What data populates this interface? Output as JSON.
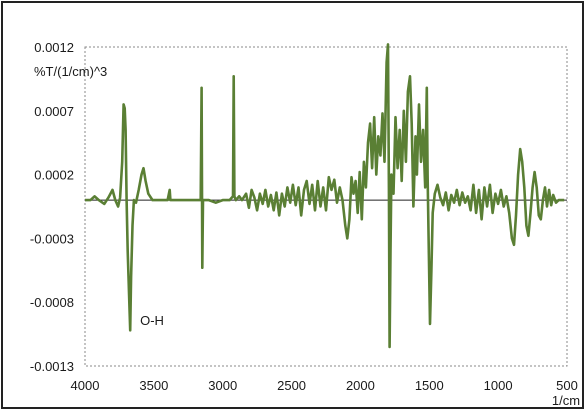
{
  "chart_data": {
    "type": "line",
    "title": "",
    "xlabel": "1/cm",
    "ylabel": "%T/(1/cm)^3",
    "x_reversed": true,
    "xlim": [
      4000,
      500
    ],
    "ylim": [
      -0.0013,
      0.0012
    ],
    "x_ticks": [
      "4000",
      "3500",
      "3000",
      "2500",
      "2000",
      "1500",
      "1000",
      "500"
    ],
    "y_ticks": [
      "0.0012",
      "0.0007",
      "0.0002",
      "-0.0003",
      "-0.0008",
      "-0.0013"
    ],
    "grid": false,
    "legend": "none",
    "colors": {
      "series": "#5a7f34",
      "baseline": "#222222",
      "border": "#222222",
      "plot_border": "#888888"
    },
    "annotations": [
      {
        "text": "O-H",
        "x": 3600,
        "y": -0.00098
      }
    ],
    "series": [
      {
        "points": [
          [
            4000,
            0.0
          ],
          [
            3960,
            0.0
          ],
          [
            3930,
            3e-05
          ],
          [
            3900,
            0.0
          ],
          [
            3860,
            -3e-05
          ],
          [
            3830,
            2e-05
          ],
          [
            3800,
            8e-05
          ],
          [
            3780,
            0.0
          ],
          [
            3760,
            -5e-05
          ],
          [
            3745,
            2e-05
          ],
          [
            3730,
            0.0003
          ],
          [
            3720,
            0.00075
          ],
          [
            3712,
            0.00072
          ],
          [
            3705,
            0.00055
          ],
          [
            3698,
            0.0
          ],
          [
            3690,
            -0.0004
          ],
          [
            3680,
            -0.00075
          ],
          [
            3672,
            -0.00102
          ],
          [
            3665,
            -0.0006
          ],
          [
            3655,
            -0.0002
          ],
          [
            3645,
            0.0
          ],
          [
            3630,
            -2e-05
          ],
          [
            3610,
            8e-05
          ],
          [
            3590,
            0.0002
          ],
          [
            3575,
            0.00025
          ],
          [
            3560,
            0.00015
          ],
          [
            3540,
            5e-05
          ],
          [
            3510,
            0.0
          ],
          [
            3450,
            0.0
          ],
          [
            3400,
            0.0
          ],
          [
            3385,
            8e-05
          ],
          [
            3380,
            0.0
          ],
          [
            3300,
            0.0
          ],
          [
            3250,
            0.0
          ],
          [
            3200,
            0.0
          ],
          [
            3160,
            0.0
          ],
          [
            3153,
            0.00088
          ],
          [
            3148,
            -0.00053
          ],
          [
            3143,
            0.0
          ],
          [
            3100,
            0.0
          ],
          [
            3050,
            -2e-05
          ],
          [
            3000,
            0.0
          ],
          [
            2950,
            0.0
          ],
          [
            2925,
            3e-05
          ],
          [
            2920,
            0.00097
          ],
          [
            2915,
            3e-05
          ],
          [
            2905,
            0.0
          ],
          [
            2880,
            3e-05
          ],
          [
            2860,
            0.0
          ],
          [
            2830,
            5e-05
          ],
          [
            2810,
            -6e-05
          ],
          [
            2790,
            8e-05
          ],
          [
            2770,
            2e-05
          ],
          [
            2750,
            -8e-05
          ],
          [
            2730,
            5e-05
          ],
          [
            2710,
            -3e-05
          ],
          [
            2690,
            8e-05
          ],
          [
            2670,
            -5e-05
          ],
          [
            2650,
            4e-05
          ],
          [
            2630,
            -8e-05
          ],
          [
            2610,
            6e-05
          ],
          [
            2590,
            -0.00012
          ],
          [
            2570,
            5e-05
          ],
          [
            2550,
            -5e-05
          ],
          [
            2530,
            0.0001
          ],
          [
            2510,
            -2e-05
          ],
          [
            2490,
            0.00012
          ],
          [
            2470,
            -4e-05
          ],
          [
            2450,
            0.0001
          ],
          [
            2430,
            -0.00012
          ],
          [
            2410,
            8e-05
          ],
          [
            2390,
            0.00015
          ],
          [
            2370,
            -3e-05
          ],
          [
            2350,
            0.00012
          ],
          [
            2330,
            -8e-05
          ],
          [
            2310,
            0.00015
          ],
          [
            2290,
            -5e-05
          ],
          [
            2270,
            0.0001
          ],
          [
            2250,
            -8e-05
          ],
          [
            2230,
            0.00018
          ],
          [
            2210,
            8e-05
          ],
          [
            2190,
            0.00016
          ],
          [
            2170,
            -2e-05
          ],
          [
            2150,
            0.0001
          ],
          [
            2130,
            0.0
          ],
          [
            2110,
            -0.0002
          ],
          [
            2095,
            -0.0003
          ],
          [
            2080,
            -0.00015
          ],
          [
            2065,
            0.00018
          ],
          [
            2050,
            5e-05
          ],
          [
            2035,
            0.00015
          ],
          [
            2020,
            -0.0001
          ],
          [
            2005,
            0.00022
          ],
          [
            1990,
            -0.00015
          ],
          [
            1975,
            0.0003
          ],
          [
            1960,
            0.0001
          ],
          [
            1945,
            0.00045
          ],
          [
            1930,
            0.0006
          ],
          [
            1915,
            0.00025
          ],
          [
            1900,
            0.00065
          ],
          [
            1885,
            0.0002
          ],
          [
            1870,
            0.0005
          ],
          [
            1855,
            0.00035
          ],
          [
            1840,
            0.00068
          ],
          [
            1825,
            0.0003
          ],
          [
            1810,
            0.00108
          ],
          [
            1800,
            0.00122
          ],
          [
            1793,
            0.0001
          ],
          [
            1788,
            -0.00115
          ],
          [
            1782,
            -0.0004
          ],
          [
            1775,
            0.0002
          ],
          [
            1760,
            5e-05
          ],
          [
            1745,
            0.00065
          ],
          [
            1730,
            0.00025
          ],
          [
            1715,
            0.00055
          ],
          [
            1700,
            0.00015
          ],
          [
            1685,
            0.0007
          ],
          [
            1670,
            0.0003
          ],
          [
            1655,
            0.00085
          ],
          [
            1640,
            0.00097
          ],
          [
            1628,
            0.0006
          ],
          [
            1615,
            -5e-05
          ],
          [
            1600,
            0.0005
          ],
          [
            1590,
            0.0002
          ],
          [
            1575,
            0.00075
          ],
          [
            1560,
            0.0003
          ],
          [
            1545,
            0.00055
          ],
          [
            1530,
            0.0001
          ],
          [
            1518,
            0.00088
          ],
          [
            1512,
            0.0002
          ],
          [
            1505,
            -0.0003
          ],
          [
            1495,
            -0.00097
          ],
          [
            1485,
            -0.00055
          ],
          [
            1475,
            -0.0001
          ],
          [
            1460,
            5e-05
          ],
          [
            1440,
            0.00012
          ],
          [
            1420,
            2e-05
          ],
          [
            1400,
            -4e-05
          ],
          [
            1380,
            6e-05
          ],
          [
            1360,
            -8e-05
          ],
          [
            1340,
            4e-05
          ],
          [
            1320,
            -2e-05
          ],
          [
            1300,
            8e-05
          ],
          [
            1280,
            -4e-05
          ],
          [
            1260,
            6e-05
          ],
          [
            1240,
            -2e-05
          ],
          [
            1220,
            3e-05
          ],
          [
            1200,
            -8e-05
          ],
          [
            1180,
            0.00012
          ],
          [
            1160,
            -0.0001
          ],
          [
            1140,
            8e-05
          ],
          [
            1120,
            -0.00015
          ],
          [
            1100,
            0.0001
          ],
          [
            1080,
            -5e-05
          ],
          [
            1060,
            0.00012
          ],
          [
            1040,
            -0.0001
          ],
          [
            1020,
            5e-05
          ],
          [
            1000,
            -3e-05
          ],
          [
            980,
            8e-05
          ],
          [
            960,
            -5e-05
          ],
          [
            940,
            3e-05
          ],
          [
            920,
            -0.0001
          ],
          [
            900,
            -0.0003
          ],
          [
            885,
            -0.00035
          ],
          [
            870,
            -0.00012
          ],
          [
            855,
            0.0002
          ],
          [
            840,
            0.0004
          ],
          [
            825,
            0.0003
          ],
          [
            810,
            0.0001
          ],
          [
            795,
            -0.0002
          ],
          [
            780,
            -0.00028
          ],
          [
            765,
            -0.0001
          ],
          [
            750,
            0.0001
          ],
          [
            735,
            0.00022
          ],
          [
            720,
            0.0001
          ],
          [
            705,
            -0.00012
          ],
          [
            690,
            -0.00015
          ],
          [
            675,
            0.0
          ],
          [
            660,
            0.0001
          ],
          [
            645,
            -5e-05
          ],
          [
            630,
            8e-05
          ],
          [
            615,
            -4e-05
          ],
          [
            600,
            4e-05
          ],
          [
            580,
            -2e-05
          ],
          [
            560,
            0.0
          ],
          [
            540,
            0.0
          ],
          [
            520,
            0.0
          ]
        ]
      }
    ]
  }
}
